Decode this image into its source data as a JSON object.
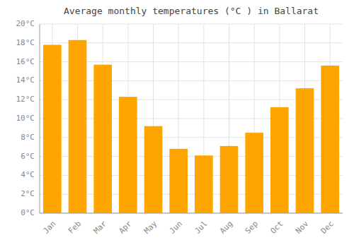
{
  "chart_data": {
    "type": "bar",
    "title": "Average monthly temperatures (°C ) in Ballarat",
    "categories": [
      "Jan",
      "Feb",
      "Mar",
      "Apr",
      "May",
      "Jun",
      "Jul",
      "Aug",
      "Sep",
      "Oct",
      "Nov",
      "Dec"
    ],
    "values": [
      17.8,
      18.3,
      15.7,
      12.3,
      9.2,
      6.8,
      6.1,
      7.1,
      8.5,
      11.2,
      13.2,
      15.6
    ],
    "color": "#FFA500",
    "ylim": [
      0,
      20
    ],
    "yticks": [
      {
        "value": 0,
        "label": "0°C"
      },
      {
        "value": 2,
        "label": "2°C"
      },
      {
        "value": 4,
        "label": "4°C"
      },
      {
        "value": 6,
        "label": "6°C"
      },
      {
        "value": 8,
        "label": "8°C"
      },
      {
        "value": 10,
        "label": "10°C"
      },
      {
        "value": 12,
        "label": "12°C"
      },
      {
        "value": 14,
        "label": "14°C"
      },
      {
        "value": 16,
        "label": "16°C"
      },
      {
        "value": 18,
        "label": "18°C"
      },
      {
        "value": 20,
        "label": "20°C"
      }
    ],
    "grid": true
  }
}
